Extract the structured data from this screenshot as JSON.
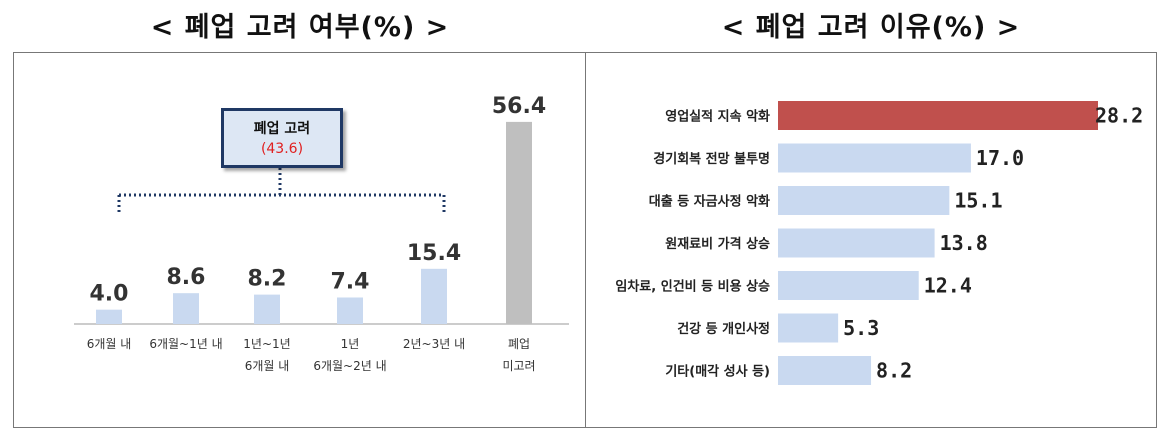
{
  "titles": {
    "left": "< 폐업 고려 여부(%) >",
    "right": "< 폐업 고려 이유(%) >"
  },
  "callout": {
    "title": "폐업 고려",
    "value": "(43.6)"
  },
  "colors": {
    "bar_light": "#c9d9f0",
    "bar_gray": "#bfbfbf",
    "bar_highlight": "#c0504d",
    "callout_border": "#1f3864",
    "dotted_line": "#1f3864"
  },
  "chart_data": [
    {
      "type": "bar",
      "orientation": "vertical",
      "title": "< 폐업 고려 여부(%) >",
      "categories": [
        [
          "6개월 내"
        ],
        [
          "6개월~1년 내"
        ],
        [
          "1년~1년",
          "6개월 내"
        ],
        [
          "1년",
          "6개월~2년 내"
        ],
        [
          "2년~3년 내"
        ],
        [
          "폐업",
          "미고려"
        ]
      ],
      "values": [
        4.0,
        8.6,
        8.2,
        7.4,
        15.4,
        56.4
      ],
      "value_labels": [
        "4.0",
        "8.6",
        "8.2",
        "7.4",
        "15.4",
        "56.4"
      ],
      "ylim": [
        0,
        60
      ],
      "grid": false,
      "group_annotation": {
        "label": "폐업 고려",
        "value": 43.6,
        "spans_categories": [
          0,
          4
        ]
      }
    },
    {
      "type": "bar",
      "orientation": "horizontal",
      "title": "< 폐업 고려 이유(%) >",
      "categories": [
        "영업실적 지속 악화",
        "경기회복 전망 불투명",
        "대출 등 자금사정 악화",
        "원재료비 가격 상승",
        "임차료, 인건비 등 비용 상승",
        "건강 등 개인사정",
        "기타(매각 성사 등)"
      ],
      "values": [
        28.2,
        17.0,
        15.1,
        13.8,
        12.4,
        5.3,
        8.2
      ],
      "value_labels": [
        "28.2",
        "17.0",
        "15.1",
        "13.8",
        "12.4",
        "5.3",
        "8.2"
      ],
      "xlim": [
        0,
        28.2
      ],
      "grid": false,
      "highlight_index": 0
    }
  ]
}
